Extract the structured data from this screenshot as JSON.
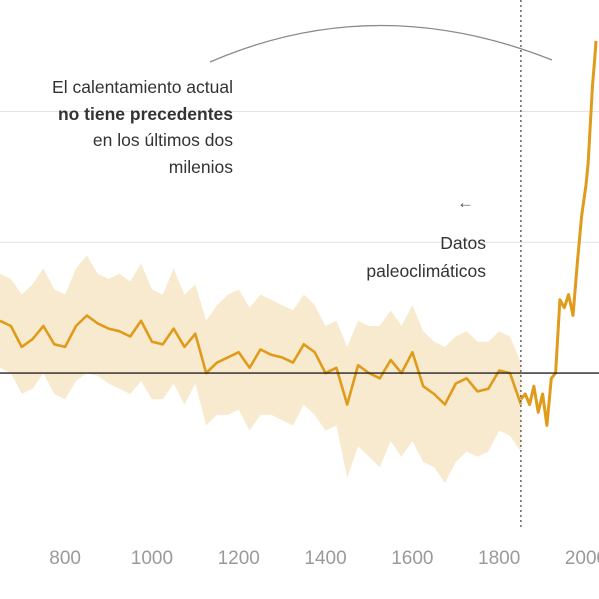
{
  "annotation": {
    "line1": "El calentamiento actual",
    "line2_bold": "no tiene precedentes",
    "line3": "en los últimos dos",
    "line4": "milenios"
  },
  "paleo_note": {
    "arrow": "←",
    "line1": "Datos",
    "line2": "paleoclimáticos"
  },
  "colors": {
    "line": "#e09b1a",
    "band": "#f8eacf",
    "zero_line": "#222222",
    "grid": "#e4e4e4",
    "divider": "#666666",
    "arc": "#8a8a8a"
  },
  "chart_data": {
    "type": "line",
    "title": "",
    "xlabel": "",
    "ylabel": "",
    "x_ticks": [
      "800",
      "1000",
      "1200",
      "1400",
      "1600",
      "1800",
      "2000"
    ],
    "xlim": [
      650,
      2030
    ],
    "ylim": [
      -0.6,
      1.35
    ],
    "gridlines_y": [
      0.5,
      1.0
    ],
    "reference_line_y": 0,
    "divider_x": 1850,
    "series": [
      {
        "kind": "paleo_reconstruction",
        "x": [
          650,
          675,
          700,
          725,
          750,
          775,
          800,
          825,
          850,
          875,
          900,
          925,
          950,
          975,
          1000,
          1025,
          1050,
          1075,
          1100,
          1125,
          1150,
          1175,
          1200,
          1225,
          1250,
          1275,
          1300,
          1325,
          1350,
          1375,
          1400,
          1425,
          1450,
          1475,
          1500,
          1525,
          1550,
          1575,
          1600,
          1625,
          1650,
          1675,
          1700,
          1725,
          1750,
          1775,
          1800,
          1825,
          1850
        ],
        "values": [
          0.2,
          0.18,
          0.1,
          0.13,
          0.18,
          0.11,
          0.1,
          0.18,
          0.22,
          0.19,
          0.17,
          0.16,
          0.14,
          0.2,
          0.12,
          0.11,
          0.17,
          0.1,
          0.15,
          0.0,
          0.04,
          0.06,
          0.08,
          0.02,
          0.09,
          0.07,
          0.06,
          0.04,
          0.11,
          0.08,
          0.0,
          0.02,
          -0.12,
          0.03,
          0.0,
          -0.02,
          0.05,
          0.0,
          0.08,
          -0.05,
          -0.08,
          -0.12,
          -0.04,
          -0.02,
          -0.07,
          -0.06,
          0.01,
          0.0,
          -0.12
        ],
        "band_upper": [
          0.38,
          0.36,
          0.3,
          0.34,
          0.4,
          0.32,
          0.3,
          0.4,
          0.45,
          0.38,
          0.36,
          0.38,
          0.35,
          0.42,
          0.32,
          0.3,
          0.4,
          0.3,
          0.34,
          0.2,
          0.26,
          0.3,
          0.32,
          0.25,
          0.3,
          0.28,
          0.26,
          0.24,
          0.3,
          0.26,
          0.18,
          0.2,
          0.1,
          0.2,
          0.18,
          0.18,
          0.24,
          0.18,
          0.26,
          0.16,
          0.12,
          0.1,
          0.14,
          0.16,
          0.12,
          0.12,
          0.16,
          0.14,
          0.04
        ],
        "band_lower": [
          0.02,
          0.0,
          -0.08,
          -0.06,
          0.0,
          -0.08,
          -0.1,
          -0.03,
          0.0,
          -0.01,
          -0.04,
          -0.06,
          -0.08,
          -0.03,
          -0.1,
          -0.1,
          -0.04,
          -0.12,
          -0.04,
          -0.2,
          -0.16,
          -0.16,
          -0.14,
          -0.22,
          -0.16,
          -0.16,
          -0.18,
          -0.2,
          -0.12,
          -0.16,
          -0.22,
          -0.2,
          -0.4,
          -0.28,
          -0.32,
          -0.36,
          -0.26,
          -0.32,
          -0.26,
          -0.34,
          -0.36,
          -0.42,
          -0.34,
          -0.3,
          -0.32,
          -0.3,
          -0.22,
          -0.24,
          -0.3
        ]
      },
      {
        "kind": "instrumental",
        "x": [
          1850,
          1860,
          1870,
          1880,
          1890,
          1900,
          1910,
          1920,
          1930,
          1940,
          1950,
          1960,
          1970,
          1980,
          1990,
          2000,
          2005,
          2010,
          2015,
          2020,
          2023
        ],
        "values": [
          -0.1,
          -0.08,
          -0.12,
          -0.05,
          -0.15,
          -0.08,
          -0.2,
          -0.02,
          0.0,
          0.28,
          0.25,
          0.3,
          0.22,
          0.42,
          0.6,
          0.72,
          0.8,
          0.95,
          1.1,
          1.2,
          1.27
        ]
      }
    ]
  }
}
